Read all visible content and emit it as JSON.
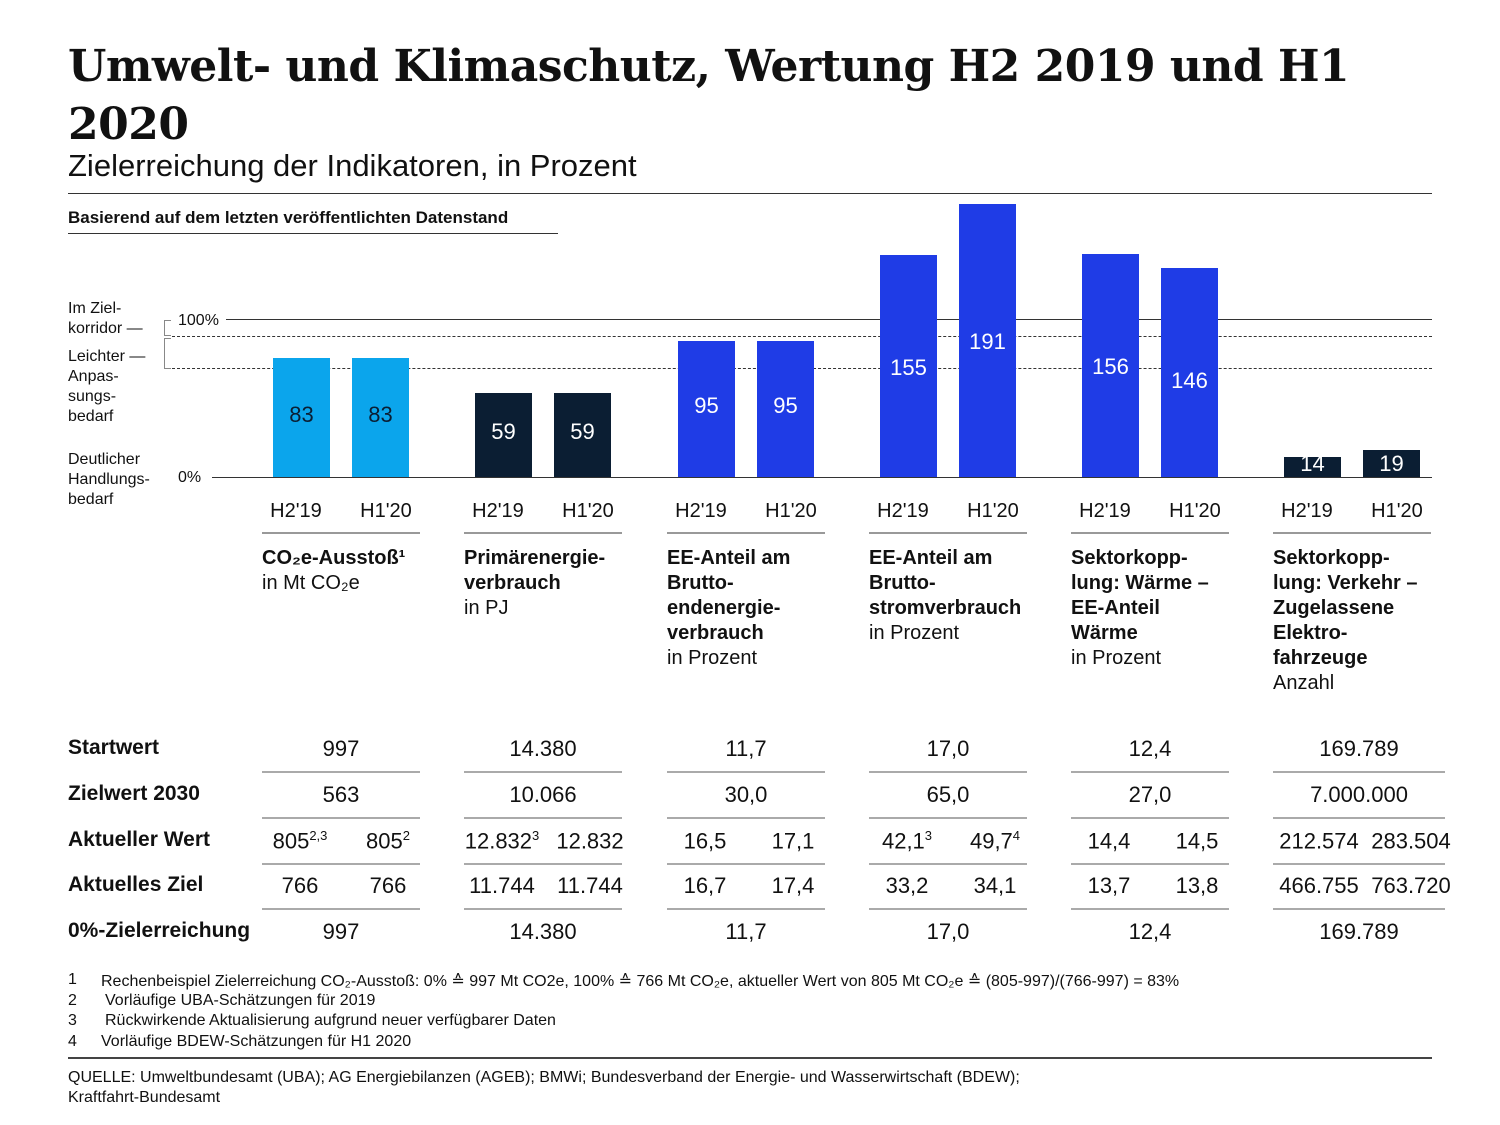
{
  "title": "Umwelt- und Klimaschutz, Wertung H2 2019 und H1 2020",
  "subtitle": "Zielerreichung der Indikatoren, in Prozent",
  "basis": "Basierend auf dem letzten veröffentlichten Datenstand",
  "zones": {
    "ziel": "Im Ziel-\nkorridor —",
    "leicht": "Leichter —\nAnpas-\nsungs-\nbedarf",
    "deutlich": "Deutlicher\nHandlungs-\nbedarf"
  },
  "colors": {
    "co2": "#0ba5ec",
    "primary": "#0b1e33",
    "blue": "#1f3ce6"
  },
  "chart_data": {
    "type": "bar",
    "title": "Umwelt- und Klimaschutz, Wertung H2 2019 und H1 2020",
    "subtitle": "Zielerreichung der Indikatoren, in Prozent",
    "yticks": [
      "0%",
      "100%"
    ],
    "periods": [
      "H2'19",
      "H1'20"
    ],
    "groups": [
      {
        "name": "CO₂e-Ausstoß¹",
        "unit": "in Mt CO₂e",
        "values": [
          83,
          83
        ],
        "color": "#0ba5ec"
      },
      {
        "name": "Primärenergie-\nverbrauch",
        "unit": "in PJ",
        "values": [
          59,
          59
        ],
        "color": "#0b1e33"
      },
      {
        "name": "EE-Anteil am\nBrutto-\nendenergie-\nverbrauch",
        "unit": "in Prozent",
        "values": [
          95,
          95
        ],
        "color": "#1f3ce6"
      },
      {
        "name": "EE-Anteil am\nBrutto-\nstromverbrauch",
        "unit": "in Prozent",
        "values": [
          155,
          191
        ],
        "color": "#1f3ce6",
        "broken_axis": true
      },
      {
        "name": "Sektorkopp-\nlung: Wärme –\nEE-Anteil\nWärme",
        "unit": "in Prozent",
        "values": [
          156,
          146
        ],
        "color": "#1f3ce6"
      },
      {
        "name": "Sektorkopp-\nlung: Verkehr –\nZugelassene\nElektro-\nfahrzeuge",
        "unit": "Anzahl",
        "values": [
          14,
          19
        ],
        "color": "#0b1e33"
      }
    ]
  },
  "table": {
    "rows": [
      {
        "label": "Startwert",
        "cells": [
          [
            "997"
          ],
          [
            "14.380"
          ],
          [
            "11,7"
          ],
          [
            "17,0"
          ],
          [
            "12,4"
          ],
          [
            "169.789"
          ]
        ]
      },
      {
        "label": "Zielwert 2030",
        "cells": [
          [
            "563"
          ],
          [
            "10.066"
          ],
          [
            "30,0"
          ],
          [
            "65,0"
          ],
          [
            "27,0"
          ],
          [
            "7.000.000"
          ]
        ]
      },
      {
        "label": "Aktueller Wert",
        "cells": [
          [
            {
              "v": "805",
              "sup": "2,3"
            },
            {
              "v": "805",
              "sup": "2"
            }
          ],
          [
            {
              "v": "12.832",
              "sup": "3"
            },
            {
              "v": "12.832",
              "sup": ""
            }
          ],
          [
            {
              "v": "16,5",
              "sup": ""
            },
            {
              "v": "17,1",
              "sup": ""
            }
          ],
          [
            {
              "v": "42,1",
              "sup": "3"
            },
            {
              "v": "49,7",
              "sup": "4"
            }
          ],
          [
            {
              "v": "14,4",
              "sup": ""
            },
            {
              "v": "14,5",
              "sup": ""
            }
          ],
          [
            {
              "v": "212.574",
              "sup": ""
            },
            {
              "v": "283.504",
              "sup": ""
            }
          ]
        ]
      },
      {
        "label": "Aktuelles Ziel",
        "cells": [
          [
            "766",
            "766"
          ],
          [
            "11.744",
            "11.744"
          ],
          [
            "16,7",
            "17,4"
          ],
          [
            "33,2",
            "34,1"
          ],
          [
            "13,7",
            "13,8"
          ],
          [
            "466.755",
            "763.720"
          ]
        ]
      },
      {
        "label": "0%-Zielerreichung",
        "cells": [
          [
            "997"
          ],
          [
            "14.380"
          ],
          [
            "11,7"
          ],
          [
            "17,0"
          ],
          [
            "12,4"
          ],
          [
            "169.789"
          ]
        ]
      }
    ]
  },
  "footnotes": [
    {
      "n": "1",
      "text": "Rechenbeispiel Zielerreichung CO₂-Ausstoß: 0% ≙ 997 Mt CO2e, 100% ≙ 766 Mt CO₂e, aktueller Wert von 805 Mt CO₂e ≙ (805-997)/(766-997) = 83%"
    },
    {
      "n": "2",
      "text": "Vorläufige UBA-Schätzungen für 2019"
    },
    {
      "n": "3",
      "text": "Rückwirkende Aktualisierung aufgrund neuer verfügbarer Daten"
    },
    {
      "n": "4",
      "text": "Vorläufige BDEW-Schätzungen für H1 2020"
    }
  ],
  "source": "QUELLE: Umweltbundesamt (UBA); AG Energiebilanzen (AGEB); BMWi; Bundesverband der Energie- und Wasserwirtschaft (BDEW); Kraftfahrt-Bundesamt"
}
